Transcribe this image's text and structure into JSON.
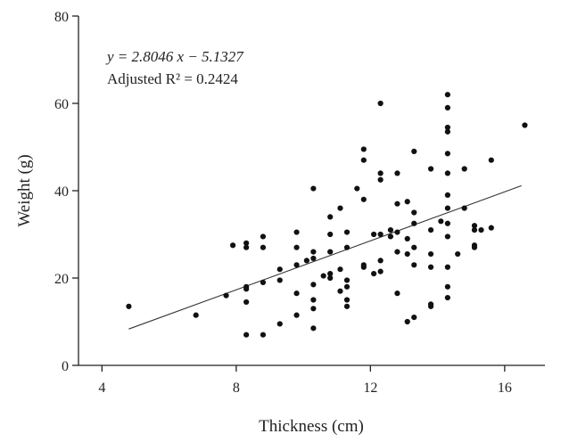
{
  "chart_data": {
    "type": "scatter",
    "title": "",
    "xlabel": "Thickness (cm)",
    "ylabel": "Weight (g)",
    "xlim": [
      3.3,
      17.2
    ],
    "ylim": [
      0,
      80
    ],
    "xticks": [
      "4",
      "8",
      "12",
      "16"
    ],
    "yticks": [
      "0",
      "20",
      "40",
      "60",
      "80"
    ],
    "grid": false,
    "legend": "none",
    "annotation": {
      "equation": "y = 2.8046 x − 5.1327",
      "r_squared": "Adjusted R² = 0.2424"
    },
    "trendline": {
      "slope": 2.8046,
      "intercept": -5.1327,
      "x_range": [
        4.8,
        16.5
      ]
    },
    "points": [
      [
        4.8,
        13.5
      ],
      [
        6.8,
        11.5
      ],
      [
        7.7,
        16
      ],
      [
        7.9,
        27.5
      ],
      [
        8.3,
        28
      ],
      [
        8.3,
        27
      ],
      [
        8.3,
        18
      ],
      [
        8.3,
        17.5
      ],
      [
        8.3,
        14.5
      ],
      [
        8.3,
        7
      ],
      [
        8.8,
        29.5
      ],
      [
        8.8,
        27
      ],
      [
        8.8,
        19
      ],
      [
        8.8,
        7
      ],
      [
        9.3,
        22
      ],
      [
        9.3,
        19.5
      ],
      [
        9.3,
        9.5
      ],
      [
        9.8,
        30.5
      ],
      [
        9.8,
        27
      ],
      [
        9.8,
        23
      ],
      [
        9.8,
        16.5
      ],
      [
        9.8,
        11.5
      ],
      [
        10.1,
        24
      ],
      [
        10.3,
        40.5
      ],
      [
        10.3,
        26
      ],
      [
        10.3,
        24.5
      ],
      [
        10.3,
        18.5
      ],
      [
        10.3,
        15
      ],
      [
        10.3,
        13
      ],
      [
        10.3,
        8.5
      ],
      [
        10.6,
        20.5
      ],
      [
        10.8,
        34
      ],
      [
        10.8,
        30
      ],
      [
        10.8,
        26
      ],
      [
        10.8,
        21
      ],
      [
        10.8,
        20
      ],
      [
        11.1,
        36
      ],
      [
        11.1,
        22
      ],
      [
        11.1,
        17
      ],
      [
        11.3,
        30.5
      ],
      [
        11.3,
        27
      ],
      [
        11.3,
        19.5
      ],
      [
        11.3,
        18
      ],
      [
        11.3,
        15
      ],
      [
        11.3,
        13.5
      ],
      [
        11.6,
        40.5
      ],
      [
        11.8,
        49.5
      ],
      [
        11.8,
        47
      ],
      [
        11.8,
        38
      ],
      [
        11.8,
        23
      ],
      [
        11.8,
        22.5
      ],
      [
        12.1,
        30
      ],
      [
        12.1,
        21
      ],
      [
        12.3,
        60
      ],
      [
        12.3,
        44
      ],
      [
        12.3,
        42.5
      ],
      [
        12.3,
        30
      ],
      [
        12.3,
        24
      ],
      [
        12.3,
        21.5
      ],
      [
        12.6,
        31
      ],
      [
        12.6,
        29.5
      ],
      [
        12.8,
        44
      ],
      [
        12.8,
        37
      ],
      [
        12.8,
        30.5
      ],
      [
        12.8,
        26
      ],
      [
        12.8,
        16.5
      ],
      [
        13.1,
        37.5
      ],
      [
        13.1,
        29
      ],
      [
        13.1,
        25.5
      ],
      [
        13.1,
        10
      ],
      [
        13.3,
        49
      ],
      [
        13.3,
        35
      ],
      [
        13.3,
        32.5
      ],
      [
        13.3,
        27
      ],
      [
        13.3,
        23
      ],
      [
        13.3,
        11
      ],
      [
        13.8,
        45
      ],
      [
        13.8,
        31
      ],
      [
        13.8,
        25.5
      ],
      [
        13.8,
        22.5
      ],
      [
        13.8,
        14
      ],
      [
        13.8,
        13.5
      ],
      [
        14.1,
        33
      ],
      [
        14.3,
        62
      ],
      [
        14.3,
        59
      ],
      [
        14.3,
        54.5
      ],
      [
        14.3,
        53.5
      ],
      [
        14.3,
        48.5
      ],
      [
        14.3,
        44
      ],
      [
        14.3,
        39
      ],
      [
        14.3,
        36
      ],
      [
        14.3,
        32.5
      ],
      [
        14.3,
        29.5
      ],
      [
        14.3,
        22.5
      ],
      [
        14.3,
        18
      ],
      [
        14.3,
        15.5
      ],
      [
        14.6,
        25.5
      ],
      [
        14.8,
        45
      ],
      [
        14.8,
        36
      ],
      [
        15.1,
        32
      ],
      [
        15.1,
        31
      ],
      [
        15.1,
        27.5
      ],
      [
        15.1,
        27
      ],
      [
        15.3,
        31
      ],
      [
        15.6,
        47
      ],
      [
        15.6,
        31.5
      ],
      [
        16.6,
        55
      ]
    ]
  }
}
